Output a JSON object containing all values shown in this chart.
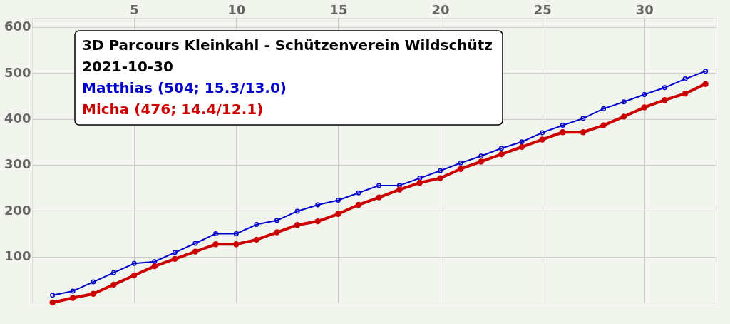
{
  "chart_data": {
    "type": "line",
    "title": "3D Parcours Kleinkahl - Schützenverein Wildschütz",
    "subtitle": "2021-10-30",
    "x": [
      1,
      2,
      3,
      4,
      5,
      6,
      7,
      8,
      9,
      10,
      11,
      12,
      13,
      14,
      15,
      16,
      17,
      18,
      19,
      20,
      21,
      22,
      23,
      24,
      25,
      26,
      27,
      28,
      29,
      30,
      31,
      32,
      33
    ],
    "series": [
      {
        "name": "Matthias (504; 15.3/13.0)",
        "color": "#0000cc",
        "values": [
          16,
          25,
          45,
          65,
          85,
          89,
          109,
          129,
          150,
          150,
          170,
          179,
          199,
          213,
          223,
          239,
          255,
          255,
          271,
          287,
          304,
          319,
          336,
          350,
          370,
          386,
          401,
          422,
          437,
          453,
          468,
          487,
          504
        ]
      },
      {
        "name": "Micha (476; 14.4/12.1)",
        "color": "#cc0000",
        "values": [
          0,
          10,
          19,
          39,
          59,
          79,
          95,
          111,
          127,
          127,
          137,
          153,
          169,
          177,
          193,
          213,
          229,
          246,
          261,
          271,
          291,
          307,
          323,
          339,
          355,
          371,
          371,
          386,
          405,
          425,
          441,
          455,
          476
        ]
      }
    ],
    "xlim": [
      0,
      33.5
    ],
    "xticks": [
      5,
      10,
      15,
      20,
      25,
      30
    ],
    "ylim": [
      0,
      620
    ],
    "yticks": [
      100,
      200,
      300,
      400,
      500,
      600
    ],
    "grid": true,
    "legend": "top left",
    "marker": "circle",
    "line_style": "solid"
  }
}
